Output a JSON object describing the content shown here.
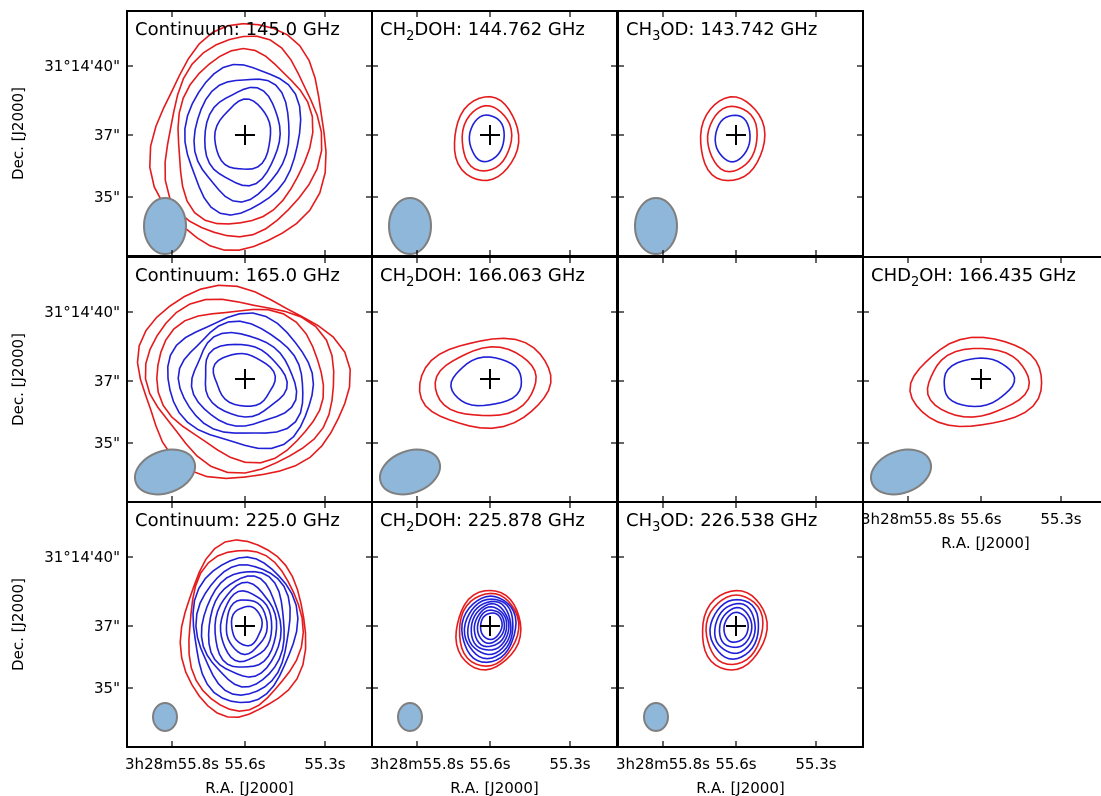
{
  "chart_data": {
    "type": "contour",
    "colors": {
      "outer_contours": "#e41a1c",
      "inner_contours": "#1f1fd6",
      "beam": "#8fb7d9",
      "beam_edge": "#7f7f7f",
      "marker": "#000000"
    },
    "axes": {
      "xlabel": "R.A. [J2000]",
      "ylabel": "Dec. [J2000]",
      "x_ticks": [
        "3h28m55.8s",
        "55.6s",
        "55.3s"
      ],
      "y_ticks": [
        "31°14'40\"",
        "37\"",
        "35\""
      ]
    },
    "panels": [
      {
        "row": 0,
        "col": 0,
        "title_pre": "Continuum: 145.0 GHz",
        "sub": "",
        "title_post": "",
        "n_red": 3,
        "n_blue": 4,
        "beam": "large",
        "shape": "round",
        "show_xaxis": false,
        "show_yaxis": true
      },
      {
        "row": 0,
        "col": 1,
        "title_pre": "CH",
        "sub": "2",
        "title_post": "DOH: 144.762 GHz",
        "n_red": 2,
        "n_blue": 1,
        "beam": "large",
        "shape": "compact",
        "show_xaxis": false,
        "show_yaxis": false
      },
      {
        "row": 0,
        "col": 2,
        "title_pre": "CH",
        "sub": "3",
        "title_post": "OD: 143.742 GHz",
        "n_red": 2,
        "n_blue": 1,
        "beam": "large",
        "shape": "compact",
        "show_xaxis": false,
        "show_yaxis": false
      },
      {
        "row": 1,
        "col": 0,
        "title_pre": "Continuum: 165.0 GHz",
        "sub": "",
        "title_post": "",
        "n_red": 3,
        "n_blue": 5,
        "beam": "wide",
        "shape": "extended",
        "show_xaxis": false,
        "show_yaxis": true
      },
      {
        "row": 1,
        "col": 1,
        "title_pre": "CH",
        "sub": "2",
        "title_post": "DOH: 166.063 GHz",
        "n_red": 2,
        "n_blue": 1,
        "beam": "wide",
        "shape": "elongated",
        "show_xaxis": false,
        "show_yaxis": false
      },
      {
        "row": 1,
        "col": 2,
        "title_pre": "",
        "sub": "",
        "title_post": "",
        "n_red": 0,
        "n_blue": 0,
        "beam": "none",
        "shape": "empty",
        "show_xaxis": false,
        "show_yaxis": false
      },
      {
        "row": 1,
        "col": 3,
        "title_pre": "CHD",
        "sub": "2",
        "title_post": "OH: 166.435 GHz",
        "n_red": 2,
        "n_blue": 1,
        "beam": "wide",
        "shape": "elongated",
        "show_xaxis": true,
        "show_yaxis": false
      },
      {
        "row": 2,
        "col": 0,
        "title_pre": "Continuum: 225.0 GHz",
        "sub": "",
        "title_post": "",
        "n_red": 2,
        "n_blue": 8,
        "beam": "small",
        "shape": "tall",
        "show_xaxis": true,
        "show_yaxis": true
      },
      {
        "row": 2,
        "col": 1,
        "title_pre": "CH",
        "sub": "2",
        "title_post": "DOH: 225.878 GHz",
        "n_red": 2,
        "n_blue": 7,
        "beam": "small",
        "shape": "dense",
        "show_xaxis": true,
        "show_yaxis": false
      },
      {
        "row": 2,
        "col": 2,
        "title_pre": "CH",
        "sub": "3",
        "title_post": "OD: 226.538 GHz",
        "n_red": 2,
        "n_blue": 4,
        "beam": "small",
        "shape": "dense",
        "show_xaxis": true,
        "show_yaxis": false
      }
    ]
  }
}
